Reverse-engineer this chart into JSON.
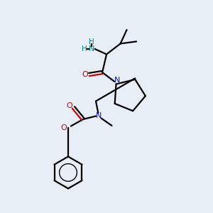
{
  "bg_color": "#e8eef5",
  "bond_color": "#000000",
  "N_color": "#1010cc",
  "O_color": "#cc0000",
  "NH2_color": "#008888",
  "line_width": 1.6,
  "figsize": [
    3.0,
    3.0
  ],
  "dpi": 100,
  "xlim": [
    0,
    10
  ],
  "ylim": [
    0,
    10
  ]
}
